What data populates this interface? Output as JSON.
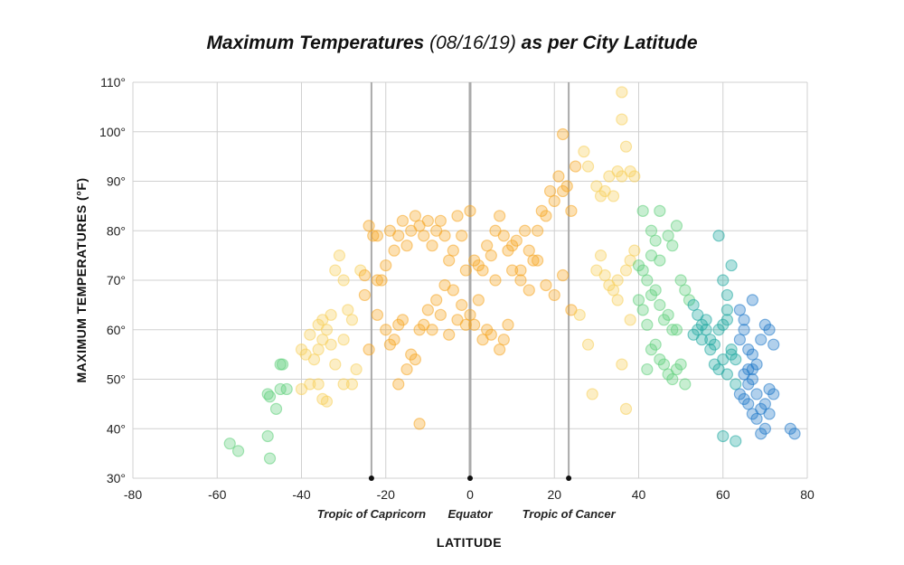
{
  "title": {
    "part1": "Maximum Temperatures",
    "part2": "(08/16/19)",
    "part3": "as per City Latitude"
  },
  "chart_data": {
    "type": "scatter",
    "title": "Maximum Temperatures (08/16/19) as per City Latitude",
    "xlabel": "LATITUDE",
    "ylabel": "MAXIMUM TEMPERATURES (°F)",
    "xlim": [
      -80,
      80
    ],
    "ylim": [
      30,
      110
    ],
    "x_ticks": [
      -80,
      -60,
      -40,
      -20,
      0,
      20,
      40,
      60,
      80
    ],
    "x_tick_labels": [
      "-80",
      "-60",
      "-40",
      "-20",
      "0",
      "20",
      "40",
      "60",
      "80"
    ],
    "y_ticks": [
      30,
      40,
      50,
      60,
      70,
      80,
      90,
      100,
      110
    ],
    "y_tick_labels": [
      "30°",
      "40°",
      "50°",
      "60°",
      "70°",
      "80°",
      "90°",
      "100°",
      "110°"
    ],
    "grid": true,
    "reference_lines": [
      {
        "x": -23.4,
        "label": "Tropic of Capricorn"
      },
      {
        "x": 0,
        "label": "Equator"
      },
      {
        "x": 23.4,
        "label": "Tropic of Cancer"
      }
    ],
    "colors": {
      "grid": "#d0d0d0",
      "reference": "#aaaaaa",
      "tropical": "#f5a623",
      "subtropical": "#f7cf5a",
      "temperate": "#5fcf7a",
      "subpolar": "#1fa8a0",
      "polar": "#1f78c8"
    },
    "points": [
      [
        -57,
        37
      ],
      [
        -55,
        35.5
      ],
      [
        -48,
        38.5
      ],
      [
        -47.5,
        34
      ],
      [
        -48,
        47
      ],
      [
        -47.5,
        46.5
      ],
      [
        -45,
        53
      ],
      [
        -44.5,
        53
      ],
      [
        -45,
        48
      ],
      [
        -43.5,
        48
      ],
      [
        -46,
        44
      ],
      [
        -40,
        48
      ],
      [
        -38,
        49
      ],
      [
        -40,
        56
      ],
      [
        -39,
        55
      ],
      [
        -37,
        54
      ],
      [
        -36,
        56
      ],
      [
        -38,
        59
      ],
      [
        -36,
        61
      ],
      [
        -35,
        62
      ],
      [
        -34,
        60
      ],
      [
        -35,
        58
      ],
      [
        -33,
        57
      ],
      [
        -32,
        53
      ],
      [
        -30,
        49
      ],
      [
        -28,
        49
      ],
      [
        -36,
        49
      ],
      [
        -35,
        46
      ],
      [
        -34,
        45.5
      ],
      [
        -33,
        63
      ],
      [
        -32,
        72
      ],
      [
        -31,
        75
      ],
      [
        -30,
        70
      ],
      [
        -29,
        64
      ],
      [
        -30,
        58
      ],
      [
        -27,
        52
      ],
      [
        -28,
        62
      ],
      [
        -26,
        72
      ],
      [
        -25,
        71
      ],
      [
        -25,
        67
      ],
      [
        -24,
        81
      ],
      [
        -23,
        79
      ],
      [
        -22,
        79
      ],
      [
        -22,
        70
      ],
      [
        -21,
        70
      ],
      [
        -20,
        73
      ],
      [
        -24,
        56
      ],
      [
        -22,
        63
      ],
      [
        -20,
        60
      ],
      [
        -19,
        57
      ],
      [
        -18,
        58
      ],
      [
        -17,
        61
      ],
      [
        -16,
        62
      ],
      [
        -15,
        52
      ],
      [
        -14,
        55
      ],
      [
        -13,
        54
      ],
      [
        -12,
        60
      ],
      [
        -11,
        61
      ],
      [
        -12,
        41
      ],
      [
        -17,
        49
      ],
      [
        -19,
        80
      ],
      [
        -18,
        76
      ],
      [
        -17,
        79
      ],
      [
        -16,
        82
      ],
      [
        -15,
        77
      ],
      [
        -14,
        80
      ],
      [
        -13,
        83
      ],
      [
        -12,
        81
      ],
      [
        -11,
        79
      ],
      [
        -10,
        82
      ],
      [
        -9,
        77
      ],
      [
        -8,
        80
      ],
      [
        -7,
        82
      ],
      [
        -6,
        79
      ],
      [
        -5,
        74
      ],
      [
        -4,
        76
      ],
      [
        -3,
        83
      ],
      [
        -2,
        79
      ],
      [
        -1,
        72
      ],
      [
        0,
        84
      ],
      [
        1,
        74
      ],
      [
        2,
        73
      ],
      [
        3,
        72
      ],
      [
        4,
        77
      ],
      [
        5,
        75
      ],
      [
        6,
        80
      ],
      [
        7,
        83
      ],
      [
        8,
        79
      ],
      [
        9,
        76
      ],
      [
        10,
        77
      ],
      [
        11,
        78
      ],
      [
        12,
        72
      ],
      [
        13,
        80
      ],
      [
        14,
        76
      ],
      [
        15,
        74
      ],
      [
        16,
        80
      ],
      [
        17,
        84
      ],
      [
        18,
        83
      ],
      [
        19,
        88
      ],
      [
        20,
        86
      ],
      [
        21,
        91
      ],
      [
        22,
        88
      ],
      [
        23,
        89
      ],
      [
        24,
        84
      ],
      [
        22,
        99.5
      ],
      [
        25,
        93
      ],
      [
        27,
        96
      ],
      [
        28,
        93
      ],
      [
        30,
        89
      ],
      [
        31,
        87
      ],
      [
        32,
        88
      ],
      [
        33,
        91
      ],
      [
        34,
        87
      ],
      [
        35,
        92
      ],
      [
        36,
        91
      ],
      [
        36,
        108
      ],
      [
        36,
        102.5
      ],
      [
        37,
        97
      ],
      [
        38,
        92
      ],
      [
        39,
        91
      ],
      [
        -10,
        64
      ],
      [
        -8,
        66
      ],
      [
        -6,
        69
      ],
      [
        -4,
        68
      ],
      [
        -2,
        65
      ],
      [
        0,
        63
      ],
      [
        2,
        66
      ],
      [
        4,
        60
      ],
      [
        6,
        70
      ],
      [
        8,
        58
      ],
      [
        10,
        72
      ],
      [
        12,
        70
      ],
      [
        14,
        68
      ],
      [
        16,
        74
      ],
      [
        18,
        69
      ],
      [
        20,
        67
      ],
      [
        22,
        71
      ],
      [
        24,
        64
      ],
      [
        26,
        63
      ],
      [
        28,
        57
      ],
      [
        29,
        47
      ],
      [
        30,
        72
      ],
      [
        31,
        75
      ],
      [
        32,
        71
      ],
      [
        33,
        69
      ],
      [
        34,
        68
      ],
      [
        35,
        66
      ],
      [
        36,
        53
      ],
      [
        37,
        44
      ],
      [
        38,
        62
      ],
      [
        -9,
        60
      ],
      [
        -7,
        63
      ],
      [
        -5,
        59
      ],
      [
        -3,
        62
      ],
      [
        -1,
        61
      ],
      [
        1,
        61
      ],
      [
        3,
        58
      ],
      [
        5,
        59
      ],
      [
        7,
        56
      ],
      [
        9,
        61
      ],
      [
        35,
        70
      ],
      [
        37,
        72
      ],
      [
        38,
        74
      ],
      [
        39,
        76
      ],
      [
        40,
        73
      ],
      [
        41,
        72
      ],
      [
        42,
        70
      ],
      [
        43,
        75
      ],
      [
        44,
        78
      ],
      [
        45,
        74
      ],
      [
        40,
        66
      ],
      [
        41,
        64
      ],
      [
        42,
        61
      ],
      [
        43,
        67
      ],
      [
        44,
        68
      ],
      [
        45,
        65
      ],
      [
        46,
        62
      ],
      [
        47,
        63
      ],
      [
        48,
        60
      ],
      [
        49,
        60
      ],
      [
        42,
        52
      ],
      [
        43,
        56
      ],
      [
        44,
        57
      ],
      [
        45,
        54
      ],
      [
        46,
        53
      ],
      [
        47,
        51
      ],
      [
        48,
        50
      ],
      [
        49,
        52
      ],
      [
        50,
        53
      ],
      [
        51,
        49
      ],
      [
        41,
        84
      ],
      [
        43,
        80
      ],
      [
        45,
        84
      ],
      [
        47,
        79
      ],
      [
        48,
        77
      ],
      [
        49,
        81
      ],
      [
        50,
        70
      ],
      [
        51,
        68
      ],
      [
        52,
        66
      ],
      [
        53,
        65
      ],
      [
        54,
        63
      ],
      [
        55,
        61
      ],
      [
        56,
        60
      ],
      [
        57,
        58
      ],
      [
        58,
        57
      ],
      [
        59,
        60
      ],
      [
        59,
        79
      ],
      [
        60,
        70
      ],
      [
        61,
        67
      ],
      [
        62,
        73
      ],
      [
        53,
        59
      ],
      [
        54,
        60
      ],
      [
        55,
        58
      ],
      [
        56,
        62
      ],
      [
        57,
        56
      ],
      [
        58,
        53
      ],
      [
        59,
        52
      ],
      [
        60,
        54
      ],
      [
        61,
        51
      ],
      [
        62,
        55
      ],
      [
        60,
        38.5
      ],
      [
        63,
        37.5
      ],
      [
        60,
        61
      ],
      [
        61,
        62
      ],
      [
        62,
        56
      ],
      [
        63,
        54
      ],
      [
        64,
        58
      ],
      [
        65,
        60
      ],
      [
        66,
        52
      ],
      [
        67,
        50
      ],
      [
        63,
        49
      ],
      [
        64,
        47
      ],
      [
        65,
        46
      ],
      [
        66,
        45
      ],
      [
        67,
        43
      ],
      [
        68,
        42
      ],
      [
        69,
        39
      ],
      [
        70,
        40
      ],
      [
        71,
        43
      ],
      [
        72,
        47
      ],
      [
        66,
        56
      ],
      [
        67,
        55
      ],
      [
        68,
        53
      ],
      [
        69,
        58
      ],
      [
        70,
        61
      ],
      [
        71,
        60
      ],
      [
        72,
        57
      ],
      [
        67,
        66
      ],
      [
        65,
        62
      ],
      [
        64,
        64
      ],
      [
        65,
        51
      ],
      [
        66,
        49
      ],
      [
        67,
        52
      ],
      [
        68,
        47
      ],
      [
        69,
        44
      ],
      [
        70,
        45
      ],
      [
        71,
        48
      ],
      [
        76,
        40
      ],
      [
        77,
        39
      ],
      [
        61,
        64
      ]
    ]
  },
  "axis_title_x": "LATITUDE",
  "axis_title_y": "MAXIMUM TEMPERATURES (°F)"
}
